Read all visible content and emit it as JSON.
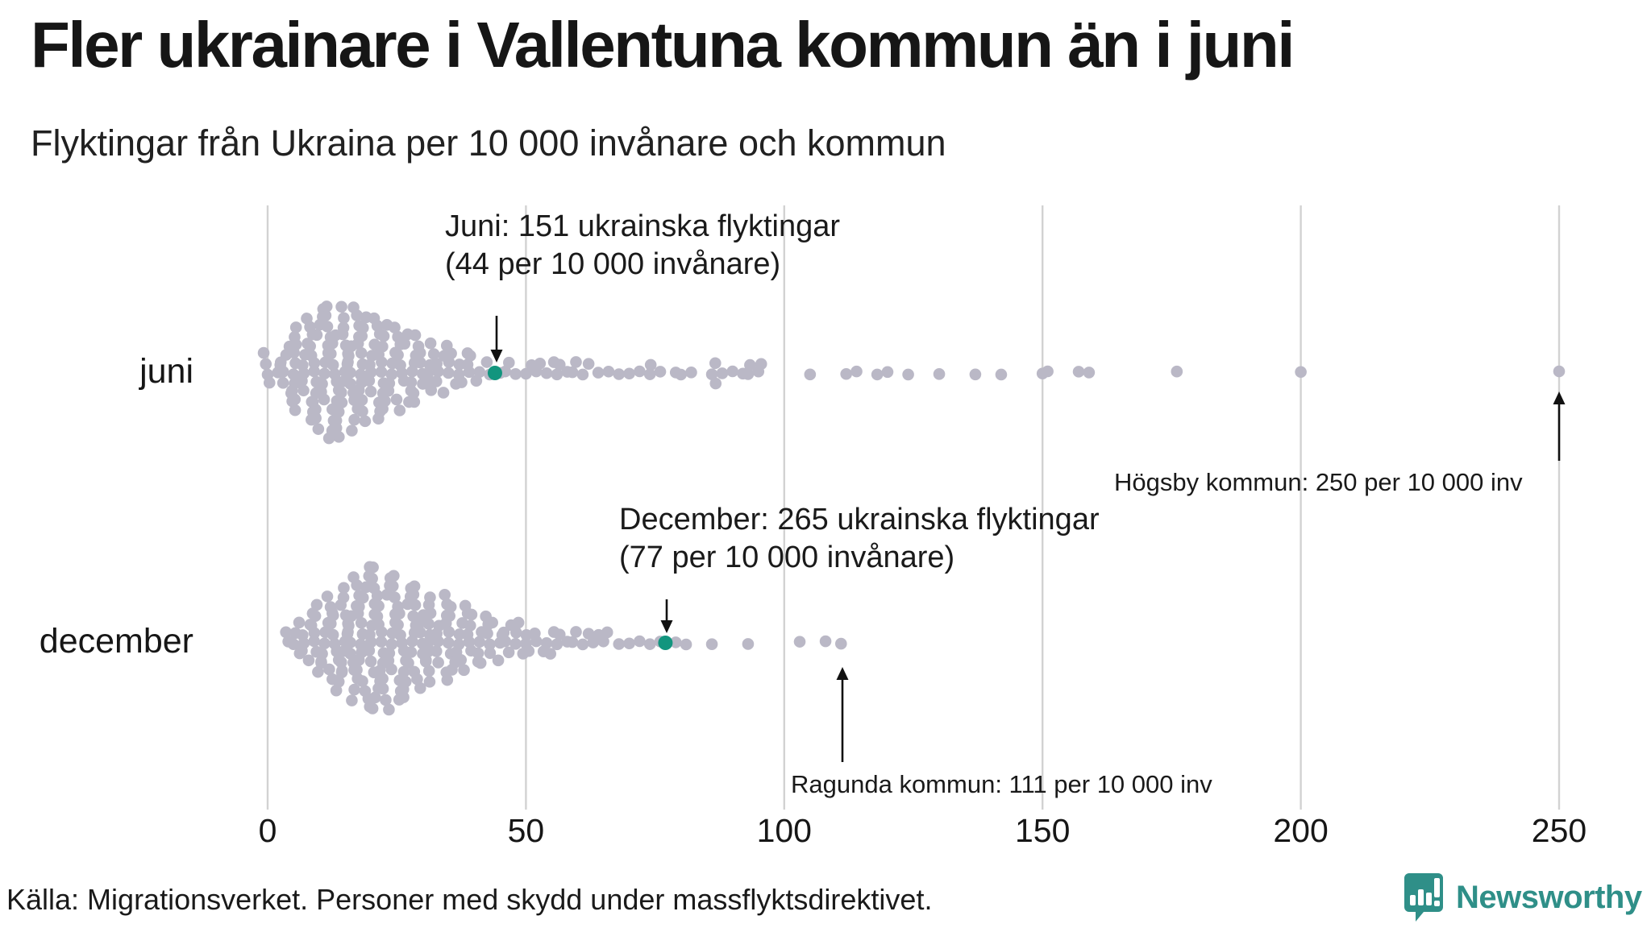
{
  "title": "Fler ukrainare i Vallentuna kommun än i juni",
  "subtitle": "Flyktingar från Ukraina per 10 000 invånare och kommun",
  "source": "Källa: Migrationsverket. Personer med skydd under massflyktsdirektivet.",
  "logo": {
    "name": "Newsworthy",
    "icon": "speech-bubble-bar-chart-icon"
  },
  "colors": {
    "dot": "#bab8c6",
    "highlight": "#12957e",
    "gridline": "#d2d2d2",
    "text": "#1a1a1a",
    "brand": "#2f8f88"
  },
  "chart_data": {
    "type": "scatter",
    "variant": "beeswarm",
    "x_unit": "flyktingar per 10 000 invånare",
    "xlim": [
      0,
      250
    ],
    "x_ticks": [
      0,
      50,
      100,
      150,
      200,
      250
    ],
    "grid": "vertical",
    "rows": [
      {
        "label": "juni",
        "highlight": {
          "value": 44,
          "label": "Vallentuna",
          "refugees": 151
        },
        "bins": [
          [
            0,
            4
          ],
          [
            2,
            2
          ],
          [
            3,
            3
          ],
          [
            4,
            4
          ],
          [
            5,
            5
          ],
          [
            6,
            5
          ],
          [
            7,
            6
          ],
          [
            8,
            6
          ],
          [
            9,
            7
          ],
          [
            10,
            7
          ],
          [
            11,
            7
          ],
          [
            12,
            8
          ],
          [
            13,
            8
          ],
          [
            14,
            7
          ],
          [
            15,
            8
          ],
          [
            16,
            7
          ],
          [
            17,
            7
          ],
          [
            18,
            6
          ],
          [
            19,
            6
          ],
          [
            20,
            6
          ],
          [
            21,
            6
          ],
          [
            22,
            5
          ],
          [
            23,
            5
          ],
          [
            24,
            5
          ],
          [
            25,
            5
          ],
          [
            26,
            4
          ],
          [
            27,
            4
          ],
          [
            28,
            4
          ],
          [
            29,
            4
          ],
          [
            30,
            4
          ],
          [
            31,
            3
          ],
          [
            32,
            3
          ],
          [
            33,
            3
          ],
          [
            34,
            3
          ],
          [
            35,
            2
          ],
          [
            36,
            2
          ],
          [
            37,
            2
          ],
          [
            38,
            2
          ],
          [
            39,
            2
          ],
          [
            40,
            2
          ],
          [
            41,
            1
          ],
          [
            42,
            1
          ],
          [
            43,
            1
          ],
          [
            45,
            1
          ],
          [
            46,
            1
          ],
          [
            47,
            1
          ],
          [
            48,
            1
          ],
          [
            50,
            1
          ],
          [
            51,
            1
          ],
          [
            52,
            1
          ],
          [
            53,
            1
          ],
          [
            54,
            1
          ],
          [
            55,
            1
          ],
          [
            56,
            1
          ],
          [
            57,
            1
          ],
          [
            58,
            1
          ],
          [
            59,
            1
          ],
          [
            60,
            1
          ],
          [
            61,
            1
          ],
          [
            62,
            1
          ],
          [
            64,
            1
          ],
          [
            66,
            1
          ],
          [
            68,
            1
          ],
          [
            70,
            1
          ],
          [
            72,
            1
          ],
          [
            74,
            2
          ],
          [
            76,
            1
          ],
          [
            79,
            1
          ],
          [
            80,
            1
          ],
          [
            82,
            1
          ],
          [
            86,
            1
          ],
          [
            87,
            2
          ],
          [
            88,
            1
          ],
          [
            90,
            1
          ],
          [
            92,
            1
          ],
          [
            93,
            2
          ],
          [
            95,
            1
          ],
          [
            96,
            1
          ],
          [
            105,
            1
          ],
          [
            112,
            1
          ],
          [
            114,
            1
          ],
          [
            118,
            1
          ],
          [
            120,
            1
          ],
          [
            124,
            1
          ],
          [
            130,
            1
          ],
          [
            137,
            1
          ],
          [
            142,
            1
          ],
          [
            150,
            1
          ],
          [
            151,
            1
          ],
          [
            157,
            1
          ],
          [
            159,
            1
          ],
          [
            176,
            1
          ],
          [
            200,
            1
          ],
          [
            250,
            1
          ]
        ]
      },
      {
        "label": "december",
        "highlight": {
          "value": 77,
          "label": "Vallentuna",
          "refugees": 265
        },
        "bins": [
          [
            4,
            2
          ],
          [
            5,
            2
          ],
          [
            6,
            2
          ],
          [
            7,
            3
          ],
          [
            8,
            3
          ],
          [
            9,
            4
          ],
          [
            10,
            4
          ],
          [
            11,
            5
          ],
          [
            12,
            5
          ],
          [
            13,
            6
          ],
          [
            14,
            6
          ],
          [
            15,
            7
          ],
          [
            16,
            7
          ],
          [
            17,
            7
          ],
          [
            18,
            8
          ],
          [
            19,
            8
          ],
          [
            20,
            8
          ],
          [
            21,
            8
          ],
          [
            22,
            8
          ],
          [
            23,
            7
          ],
          [
            24,
            7
          ],
          [
            25,
            7
          ],
          [
            26,
            7
          ],
          [
            27,
            6
          ],
          [
            28,
            6
          ],
          [
            29,
            6
          ],
          [
            30,
            6
          ],
          [
            31,
            5
          ],
          [
            32,
            5
          ],
          [
            33,
            5
          ],
          [
            34,
            5
          ],
          [
            35,
            4
          ],
          [
            36,
            4
          ],
          [
            37,
            4
          ],
          [
            38,
            4
          ],
          [
            39,
            3
          ],
          [
            40,
            3
          ],
          [
            41,
            3
          ],
          [
            42,
            3
          ],
          [
            43,
            3
          ],
          [
            44,
            2
          ],
          [
            45,
            2
          ],
          [
            46,
            2
          ],
          [
            47,
            2
          ],
          [
            48,
            2
          ],
          [
            49,
            2
          ],
          [
            50,
            2
          ],
          [
            51,
            1
          ],
          [
            52,
            2
          ],
          [
            53,
            1
          ],
          [
            54,
            1
          ],
          [
            55,
            2
          ],
          [
            56,
            1
          ],
          [
            57,
            1
          ],
          [
            58,
            1
          ],
          [
            59,
            1
          ],
          [
            60,
            1
          ],
          [
            61,
            1
          ],
          [
            62,
            1
          ],
          [
            63,
            1
          ],
          [
            64,
            1
          ],
          [
            65,
            1
          ],
          [
            66,
            1
          ],
          [
            68,
            1
          ],
          [
            70,
            1
          ],
          [
            72,
            1
          ],
          [
            74,
            1
          ],
          [
            76,
            1
          ],
          [
            79,
            1
          ],
          [
            81,
            1
          ],
          [
            86,
            1
          ],
          [
            93,
            1
          ],
          [
            103,
            1
          ],
          [
            108,
            1
          ],
          [
            111,
            1
          ]
        ]
      }
    ],
    "annotations": [
      {
        "id": "juni",
        "line1": "Juni: 151 ukrainska flyktingar",
        "line2": "(44 per 10 000 invånare)",
        "points_to_value": 44
      },
      {
        "id": "december",
        "line1": "December: 265 ukrainska flyktingar",
        "line2": "(77 per 10 000 invånare)",
        "points_to_value": 77
      },
      {
        "id": "hogsby",
        "text": "Högsby kommun: 250 per 10 000 inv",
        "points_to_value": 250
      },
      {
        "id": "ragunda",
        "text": "Ragunda kommun: 111 per 10 000 inv",
        "points_to_value": 111
      }
    ]
  }
}
